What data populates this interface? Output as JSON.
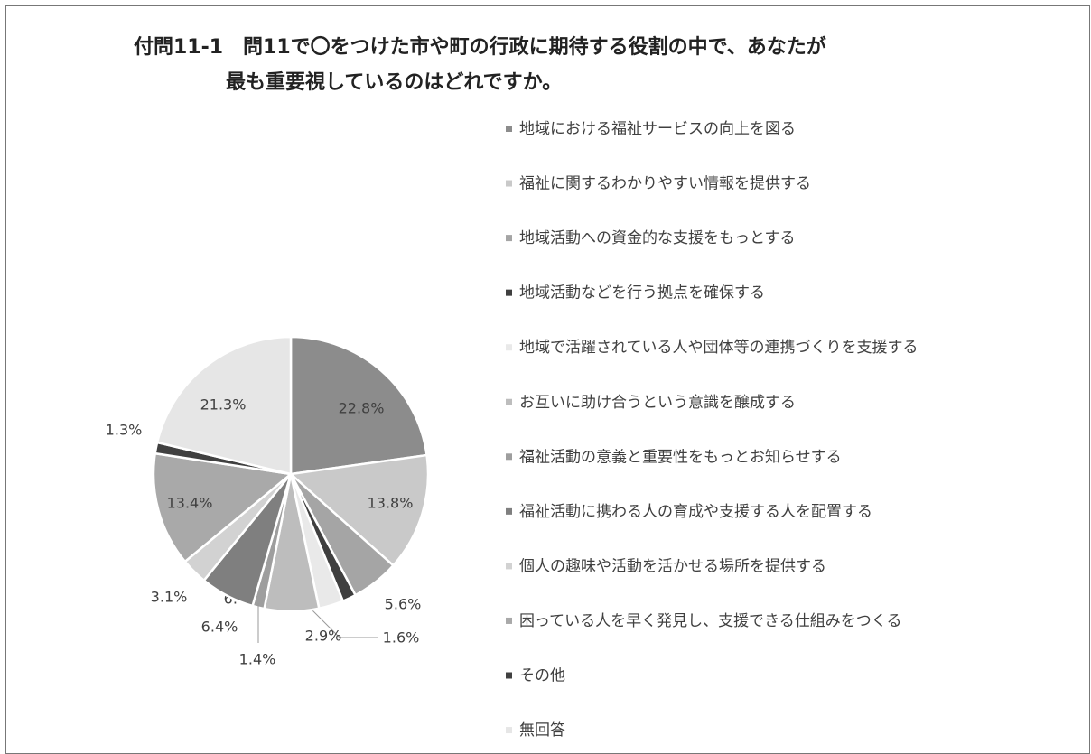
{
  "chart_data": {
    "type": "pie",
    "title": [
      "付問11-1　問11で〇をつけた市や町の行政に期待する役割の中で、あなたが",
      "最も重要視しているのはどれですか。"
    ],
    "categories": [
      "地域における福祉サービスの向上を図る",
      "福祉に関するわかりやすい情報を提供する",
      "地域活動への資金的な支援をもっとする",
      "地域活動などを行う拠点を確保する",
      "地域で活躍されている人や団体等の連携づくりを支援する",
      "お互いに助け合うという意識を醸成する",
      "福祉活動の意義と重要性をもっとお知らせする",
      "福祉活動に携わる人の育成や支援する人を配置する",
      "個人の趣味や活動を活かせる場所を提供する",
      "困っている人を早く発見し、支援できる仕組みをつくる",
      "その他",
      "無回答"
    ],
    "values": [
      22.8,
      13.8,
      5.6,
      1.6,
      2.9,
      6.4,
      1.4,
      6.4,
      3.1,
      13.4,
      1.3,
      21.3
    ],
    "value_labels": [
      "22.8%",
      "13.8%",
      "5.6%",
      "1.6%",
      "2.9%",
      "6.4%",
      "1.4%",
      "6.4%",
      "3.1%",
      "13.4%",
      "1.3%",
      "21.3%"
    ],
    "colors": [
      "#8c8c8c",
      "#c9c9c9",
      "#a5a5a5",
      "#3f3f3f",
      "#e9e9e9",
      "#bdbdbd",
      "#9e9e9e",
      "#7f7f7f",
      "#d2d2d2",
      "#a9a9a9",
      "#404040",
      "#e6e6e6"
    ]
  }
}
